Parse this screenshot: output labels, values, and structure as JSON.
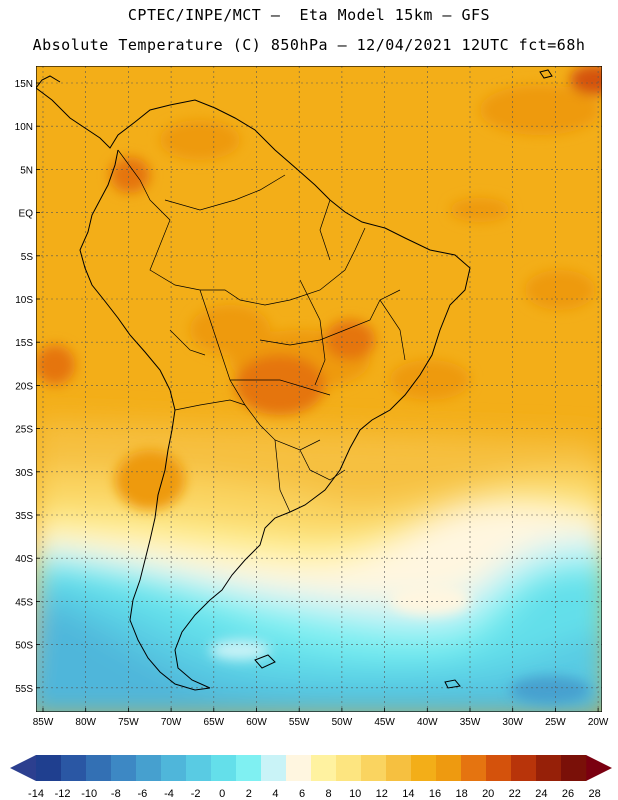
{
  "header": {
    "line1": "CPTEC/INPE/MCT –  Eta Model 15km – GFS",
    "line2": "Absolute Temperature (C) 850hPa – 12/04/2021 12UTC fct=68h"
  },
  "map": {
    "lat_labels": [
      "15N",
      "10N",
      "5N",
      "EQ",
      "5S",
      "10S",
      "15S",
      "20S",
      "25S",
      "30S",
      "35S",
      "40S",
      "45S",
      "50S",
      "55S"
    ],
    "lon_labels": [
      "85W",
      "80W",
      "75W",
      "70W",
      "65W",
      "60W",
      "55W",
      "50W",
      "45W",
      "40W",
      "35W",
      "30W",
      "25W",
      "20W"
    ]
  },
  "colorbar": {
    "labels": [
      "-14",
      "-12",
      "-10",
      "-8",
      "-6",
      "-4",
      "-2",
      "0",
      "2",
      "4",
      "6",
      "8",
      "10",
      "12",
      "14",
      "16",
      "18",
      "20",
      "22",
      "24",
      "26",
      "28"
    ],
    "colors": [
      "#1f3f8f",
      "#2a57a4",
      "#3370b4",
      "#3d88c4",
      "#46a0cf",
      "#4fb6da",
      "#59cbe3",
      "#64dfea",
      "#7ff0f2",
      "#c9f3f7",
      "#fff6e0",
      "#fff2a0",
      "#fde580",
      "#fad460",
      "#f6c040",
      "#f3ae18",
      "#ee9a10",
      "#e57410",
      "#d4520c",
      "#b8340a",
      "#962008",
      "#7a1008"
    ],
    "min_color": "#2c3f8f",
    "max_color": "#7a0010"
  }
}
